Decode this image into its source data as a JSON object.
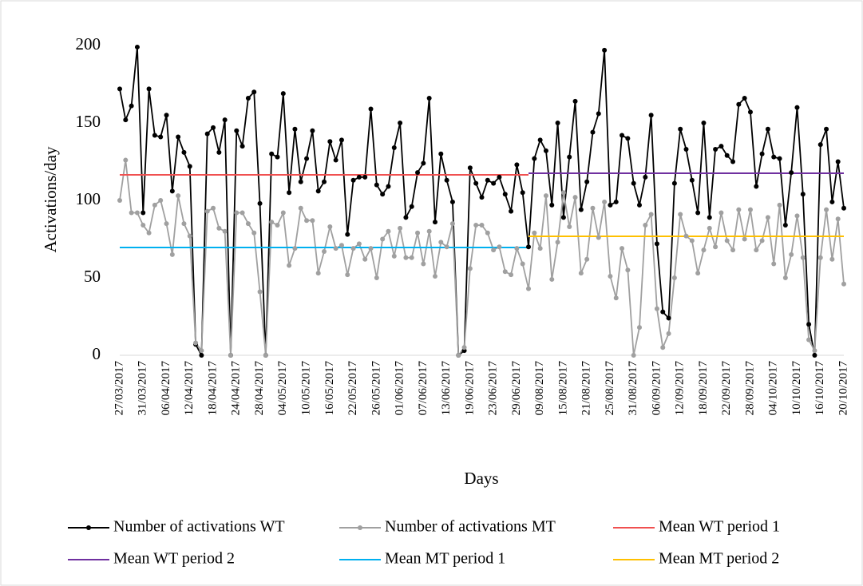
{
  "chart_data": {
    "type": "line",
    "y_label": "Activations/day",
    "x_label": "Days",
    "ylim": [
      0,
      200
    ],
    "yticks": [
      0,
      50,
      100,
      150,
      200
    ],
    "categories": [
      "27/03/2017",
      null,
      null,
      null,
      "31/03/2017",
      null,
      null,
      null,
      "06/04/2017",
      null,
      null,
      null,
      "12/04/2017",
      null,
      null,
      null,
      "18/04/2017",
      null,
      null,
      null,
      "24/04/2017",
      null,
      null,
      null,
      "28/04/2017",
      null,
      null,
      null,
      "04/05/2017",
      null,
      null,
      null,
      "10/05/2017",
      null,
      null,
      null,
      "16/05/2017",
      null,
      null,
      null,
      "22/05/2017",
      null,
      null,
      null,
      "26/05/2017",
      null,
      null,
      null,
      "01/06/2017",
      null,
      null,
      null,
      "07/06/2017",
      null,
      null,
      null,
      "13/06/2017",
      null,
      null,
      null,
      "19/06/2017",
      null,
      null,
      null,
      "23/06/2017",
      null,
      null,
      null,
      "29/06/2017",
      null,
      null,
      null,
      "09/08/2017",
      null,
      null,
      null,
      "15/08/2017",
      null,
      null,
      null,
      "21/08/2017",
      null,
      null,
      null,
      "25/08/2017",
      null,
      null,
      null,
      "31/08/2017",
      null,
      null,
      null,
      "06/09/2017",
      null,
      null,
      null,
      "12/09/2017",
      null,
      null,
      null,
      "18/09/2017",
      null,
      null,
      null,
      "22/09/2017",
      null,
      null,
      null,
      "28/09/2017",
      null,
      null,
      null,
      "04/10/2017",
      null,
      null,
      null,
      "10/10/2017",
      null,
      null,
      null,
      "16/10/2017",
      null,
      null,
      null,
      "20/10/2017"
    ],
    "series": [
      {
        "name": "Number of activations WT",
        "color": "#000000",
        "marker": true,
        "values": [
          172,
          152,
          161,
          199,
          92,
          172,
          142,
          141,
          155,
          106,
          141,
          131,
          122,
          7,
          0,
          143,
          147,
          131,
          152,
          0,
          145,
          135,
          166,
          170,
          98,
          0,
          130,
          128,
          169,
          105,
          146,
          112,
          127,
          145,
          106,
          112,
          138,
          126,
          139,
          78,
          113,
          115,
          115,
          159,
          110,
          104,
          109,
          134,
          150,
          89,
          96,
          118,
          124,
          166,
          86,
          130,
          113,
          99,
          0,
          3,
          121,
          111,
          102,
          113,
          111,
          115,
          104,
          93,
          123,
          105,
          70,
          127,
          139,
          132,
          97,
          150,
          89,
          128,
          164,
          94,
          112,
          144,
          156,
          197,
          97,
          99,
          142,
          140,
          111,
          97,
          115,
          155,
          72,
          28,
          24,
          111,
          146,
          133,
          113,
          92,
          150,
          89,
          133,
          135,
          129,
          125,
          162,
          166,
          157,
          109,
          130,
          146,
          128,
          127,
          84,
          118,
          160,
          104,
          20,
          0,
          136,
          146,
          99,
          125,
          95
        ]
      },
      {
        "name": "Number of activations MT",
        "color": "#a0a0a0",
        "marker": true,
        "values": [
          100,
          126,
          92,
          92,
          84,
          79,
          97,
          100,
          85,
          65,
          103,
          85,
          77,
          8,
          3,
          93,
          95,
          82,
          80,
          0,
          92,
          92,
          85,
          79,
          41,
          0,
          86,
          84,
          92,
          58,
          69,
          95,
          87,
          87,
          53,
          67,
          83,
          69,
          71,
          52,
          69,
          72,
          62,
          69,
          50,
          75,
          80,
          64,
          82,
          63,
          63,
          79,
          59,
          80,
          51,
          73,
          70,
          85,
          0,
          5,
          56,
          84,
          84,
          79,
          68,
          70,
          54,
          52,
          69,
          59,
          43,
          79,
          69,
          103,
          49,
          73,
          105,
          83,
          102,
          53,
          62,
          95,
          76,
          99,
          51,
          37,
          69,
          55,
          0,
          18,
          84,
          91,
          30,
          5,
          14,
          50,
          91,
          77,
          74,
          53,
          68,
          82,
          70,
          92,
          74,
          68,
          94,
          75,
          94,
          68,
          74,
          89,
          59,
          97,
          50,
          65,
          90,
          63,
          10,
          3,
          63,
          94,
          62,
          88,
          46
        ]
      },
      {
        "name": "Mean WT period 1",
        "color": "#f05050",
        "marker": false,
        "values": [
          116.5,
          116.5,
          116.5,
          116.5,
          116.5,
          116.5,
          116.5,
          116.5,
          116.5,
          116.5,
          116.5,
          116.5,
          116.5,
          116.5,
          116.5,
          116.5,
          116.5,
          116.5,
          116.5,
          116.5,
          116.5,
          116.5,
          116.5,
          116.5,
          116.5,
          116.5,
          116.5,
          116.5,
          116.5,
          116.5,
          116.5,
          116.5,
          116.5,
          116.5,
          116.5,
          116.5,
          116.5,
          116.5,
          116.5,
          116.5,
          116.5,
          116.5,
          116.5,
          116.5,
          116.5,
          116.5,
          116.5,
          116.5,
          116.5,
          116.5,
          116.5,
          116.5,
          116.5,
          116.5,
          116.5,
          116.5,
          116.5,
          116.5,
          116.5,
          116.5,
          116.5,
          116.5,
          116.5,
          116.5,
          116.5,
          116.5,
          116.5,
          116.5,
          116.5,
          116.5,
          116.5,
          null,
          null,
          null,
          null,
          null,
          null,
          null,
          null,
          null,
          null,
          null,
          null,
          null,
          null,
          null,
          null,
          null,
          null,
          null,
          null,
          null,
          null,
          null,
          null,
          null,
          null,
          null,
          null,
          null,
          null,
          null,
          null,
          null,
          null,
          null,
          null,
          null,
          null,
          null,
          null,
          null,
          null,
          null,
          null,
          null,
          null,
          null,
          null,
          null,
          null,
          null,
          null,
          null,
          null
        ]
      },
      {
        "name": "Mean WT period 2",
        "color": "#7030a0",
        "marker": false,
        "values": [
          null,
          null,
          null,
          null,
          null,
          null,
          null,
          null,
          null,
          null,
          null,
          null,
          null,
          null,
          null,
          null,
          null,
          null,
          null,
          null,
          null,
          null,
          null,
          null,
          null,
          null,
          null,
          null,
          null,
          null,
          null,
          null,
          null,
          null,
          null,
          null,
          null,
          null,
          null,
          null,
          null,
          null,
          null,
          null,
          null,
          null,
          null,
          null,
          null,
          null,
          null,
          null,
          null,
          null,
          null,
          null,
          null,
          null,
          null,
          null,
          null,
          null,
          null,
          null,
          null,
          null,
          null,
          null,
          null,
          null,
          117.5,
          117.5,
          117.5,
          117.5,
          117.5,
          117.5,
          117.5,
          117.5,
          117.5,
          117.5,
          117.5,
          117.5,
          117.5,
          117.5,
          117.5,
          117.5,
          117.5,
          117.5,
          117.5,
          117.5,
          117.5,
          117.5,
          117.5,
          117.5,
          117.5,
          117.5,
          117.5,
          117.5,
          117.5,
          117.5,
          117.5,
          117.5,
          117.5,
          117.5,
          117.5,
          117.5,
          117.5,
          117.5,
          117.5,
          117.5,
          117.5,
          117.5,
          117.5,
          117.5,
          117.5,
          117.5,
          117.5,
          117.5,
          117.5,
          117.5,
          117.5,
          117.5,
          117.5,
          117.5,
          117.5
        ]
      },
      {
        "name": "Mean MT period 1",
        "color": "#00b0f0",
        "marker": false,
        "values": [
          69.6,
          69.6,
          69.6,
          69.6,
          69.6,
          69.6,
          69.6,
          69.6,
          69.6,
          69.6,
          69.6,
          69.6,
          69.6,
          69.6,
          69.6,
          69.6,
          69.6,
          69.6,
          69.6,
          69.6,
          69.6,
          69.6,
          69.6,
          69.6,
          69.6,
          69.6,
          69.6,
          69.6,
          69.6,
          69.6,
          69.6,
          69.6,
          69.6,
          69.6,
          69.6,
          69.6,
          69.6,
          69.6,
          69.6,
          69.6,
          69.6,
          69.6,
          69.6,
          69.6,
          69.6,
          69.6,
          69.6,
          69.6,
          69.6,
          69.6,
          69.6,
          69.6,
          69.6,
          69.6,
          69.6,
          69.6,
          69.6,
          69.6,
          69.6,
          69.6,
          69.6,
          69.6,
          69.6,
          69.6,
          69.6,
          69.6,
          69.6,
          69.6,
          69.6,
          69.6,
          69.6,
          null,
          null,
          null,
          null,
          null,
          null,
          null,
          null,
          null,
          null,
          null,
          null,
          null,
          null,
          null,
          null,
          null,
          null,
          null,
          null,
          null,
          null,
          null,
          null,
          null,
          null,
          null,
          null,
          null,
          null,
          null,
          null,
          null,
          null,
          null,
          null,
          null,
          null,
          null,
          null,
          null,
          null,
          null,
          null,
          null,
          null,
          null,
          null,
          null,
          null,
          null,
          null,
          null,
          null
        ]
      },
      {
        "name": "Mean MT period 2",
        "color": "#ffc000",
        "marker": false,
        "values": [
          null,
          null,
          null,
          null,
          null,
          null,
          null,
          null,
          null,
          null,
          null,
          null,
          null,
          null,
          null,
          null,
          null,
          null,
          null,
          null,
          null,
          null,
          null,
          null,
          null,
          null,
          null,
          null,
          null,
          null,
          null,
          null,
          null,
          null,
          null,
          null,
          null,
          null,
          null,
          null,
          null,
          null,
          null,
          null,
          null,
          null,
          null,
          null,
          null,
          null,
          null,
          null,
          null,
          null,
          null,
          null,
          null,
          null,
          null,
          null,
          null,
          null,
          null,
          null,
          null,
          null,
          null,
          null,
          null,
          null,
          76.8,
          76.8,
          76.8,
          76.8,
          76.8,
          76.8,
          76.8,
          76.8,
          76.8,
          76.8,
          76.8,
          76.8,
          76.8,
          76.8,
          76.8,
          76.8,
          76.8,
          76.8,
          76.8,
          76.8,
          76.8,
          76.8,
          76.8,
          76.8,
          76.8,
          76.8,
          76.8,
          76.8,
          76.8,
          76.8,
          76.8,
          76.8,
          76.8,
          76.8,
          76.8,
          76.8,
          76.8,
          76.8,
          76.8,
          76.8,
          76.8,
          76.8,
          76.8,
          76.8,
          76.8,
          76.8,
          76.8,
          76.8,
          76.8,
          76.8,
          76.8,
          76.8,
          76.8,
          76.8,
          76.8
        ]
      }
    ]
  }
}
